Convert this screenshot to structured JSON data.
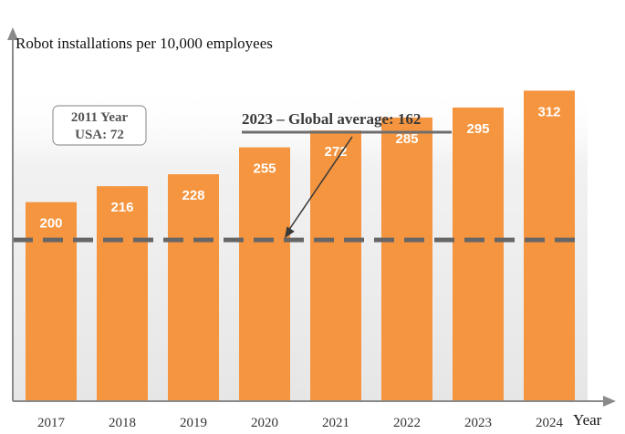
{
  "chart_data": {
    "type": "bar",
    "ylabel": "Robot installations per 10,000 employees",
    "xlabel": "Year",
    "categories": [
      "2017",
      "2018",
      "2019",
      "2020",
      "2021",
      "2022",
      "2023",
      "2024"
    ],
    "values": [
      200,
      216,
      228,
      255,
      272,
      285,
      295,
      312
    ],
    "ylim": [
      0,
      360
    ],
    "grid": false,
    "bar_color": "#f5953f",
    "reference_line": {
      "value": 162,
      "label": "2023 – Global average: 162",
      "color": "#666666"
    },
    "callout": {
      "line1": "2011 Year",
      "line2": "USA: 72"
    }
  }
}
